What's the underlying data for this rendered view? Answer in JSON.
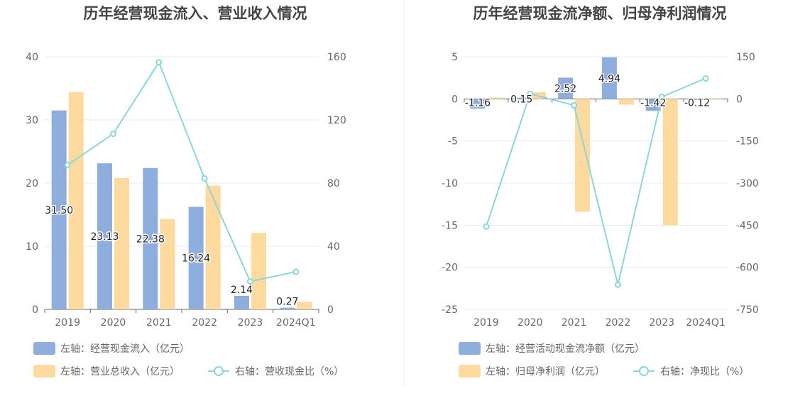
{
  "chart_data": [
    {
      "type": "bar",
      "title": "历年经营现金流入、营业收入情况",
      "categories": [
        "2019",
        "2020",
        "2021",
        "2022",
        "2023",
        "2024Q1"
      ],
      "left_axis": {
        "ylim": [
          0,
          40
        ],
        "ticks": [
          "0",
          "10",
          "20",
          "30",
          "40"
        ]
      },
      "right_axis": {
        "ylim": [
          0,
          160
        ],
        "ticks": [
          "0",
          "40",
          "80",
          "120",
          "160"
        ]
      },
      "series": [
        {
          "name": "左轴：经营现金流入（亿元）",
          "kind": "bar",
          "axis": "left",
          "color": "#8EAEDD",
          "values": [
            31.5,
            23.13,
            22.38,
            16.24,
            2.14,
            0.27
          ],
          "labels": [
            "31.50",
            "23.13",
            "22.38",
            "16.24",
            "2.14",
            "0.27"
          ]
        },
        {
          "name": "左轴：营业总收入（亿元）",
          "kind": "bar",
          "axis": "left",
          "color": "#FFDA9E",
          "values": [
            34.4,
            20.8,
            14.3,
            19.6,
            12.1,
            1.2
          ]
        },
        {
          "name": "右轴：营收现金比（%）",
          "kind": "line",
          "axis": "right",
          "color": "#8DD6D8",
          "values": [
            91.5,
            111.2,
            156.5,
            82.9,
            17.7,
            23.8
          ]
        }
      ],
      "legend_position": "bottom-left"
    },
    {
      "type": "bar",
      "title": "历年经营现金流净额、归母净利润情况",
      "categories": [
        "2019",
        "2020",
        "2021",
        "2022",
        "2023",
        "2024Q1"
      ],
      "left_axis": {
        "ylim": [
          -25,
          5
        ],
        "ticks": [
          "-25",
          "-20",
          "-15",
          "-10",
          "-5",
          "0",
          "5"
        ]
      },
      "right_axis": {
        "ylim": [
          -750,
          150
        ],
        "ticks": [
          "-750",
          "-600",
          "-450",
          "-300",
          "-150",
          "0",
          "150"
        ]
      },
      "series": [
        {
          "name": "左轴：经营活动现金流净额（亿元）",
          "kind": "bar",
          "axis": "left",
          "color": "#8EAEDD",
          "values": [
            -1.16,
            0.15,
            2.52,
            4.94,
            -1.42,
            -0.12
          ],
          "labels": [
            "-1.16",
            "0.15",
            "2.52",
            "4.94",
            "-1.42",
            "-0.12"
          ]
        },
        {
          "name": "左轴：归母净利润（亿元）",
          "kind": "bar",
          "axis": "left",
          "color": "#FFDA9E",
          "values": [
            0.15,
            0.8,
            -13.4,
            -0.7,
            -15.0,
            -0.1
          ]
        },
        {
          "name": "右轴：净现比（%）",
          "kind": "line",
          "axis": "right",
          "color": "#8DD6D8",
          "values": [
            -455,
            18,
            -23,
            -662,
            7,
            73
          ]
        }
      ],
      "legend_position": "bottom-left"
    }
  ]
}
